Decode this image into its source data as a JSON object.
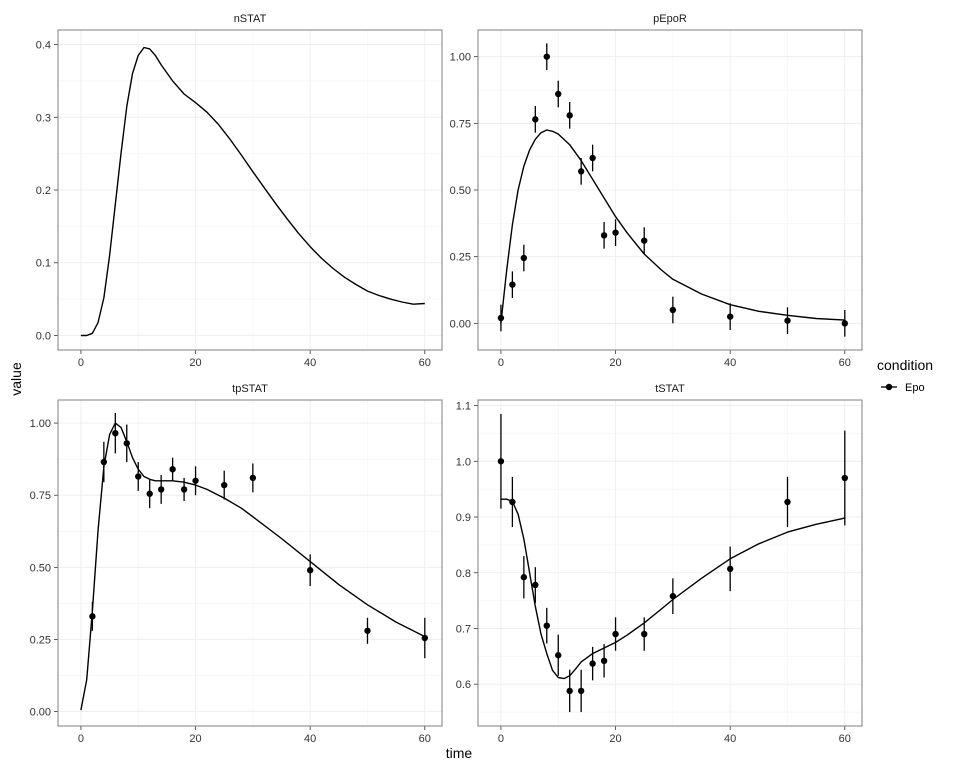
{
  "chart_data": {
    "type": "line",
    "xlabel": "time",
    "ylabel": "value",
    "grid": true,
    "legend": {
      "title": "condition",
      "placement": "right",
      "entries": [
        {
          "name": "Epo",
          "color": "#000000",
          "marker": "point-line"
        }
      ]
    },
    "colors": {
      "line": "#000000",
      "point": "#000000",
      "grid": "#ebebeb",
      "frame": "#7f7f7f"
    },
    "panels": [
      {
        "title": "nSTAT",
        "xlim": [
          -4,
          63
        ],
        "ylim": [
          -0.02,
          0.42
        ],
        "xticks": [
          0,
          20,
          40,
          60
        ],
        "xtick_labels": [
          "0",
          "20",
          "40",
          "60"
        ],
        "yticks": [
          0,
          0.1,
          0.2,
          0.3,
          0.4
        ],
        "ytick_labels": [
          "0.0",
          "0.1",
          "0.2",
          "0.3",
          "0.4"
        ],
        "series": [
          {
            "type": "line",
            "x": [
              0,
              1,
              2,
              3,
              4,
              5,
              6,
              7,
              8,
              9,
              10,
              11,
              12,
              13,
              14,
              16,
              18,
              20,
              22,
              24,
              26,
              28,
              30,
              32,
              34,
              36,
              38,
              40,
              42,
              44,
              46,
              48,
              50,
              52,
              54,
              56,
              58,
              60
            ],
            "y": [
              0.0,
              0.0,
              0.003,
              0.018,
              0.052,
              0.11,
              0.18,
              0.25,
              0.315,
              0.36,
              0.385,
              0.396,
              0.394,
              0.385,
              0.372,
              0.35,
              0.332,
              0.32,
              0.307,
              0.29,
              0.27,
              0.248,
              0.225,
              0.203,
              0.181,
              0.16,
              0.14,
              0.122,
              0.106,
              0.092,
              0.08,
              0.07,
              0.061,
              0.055,
              0.05,
              0.046,
              0.043,
              0.044
            ]
          }
        ]
      },
      {
        "title": "pEpoR",
        "xlim": [
          -4,
          63
        ],
        "ylim": [
          -0.1,
          1.1
        ],
        "xticks": [
          0,
          20,
          40,
          60
        ],
        "xtick_labels": [
          "0",
          "20",
          "40",
          "60"
        ],
        "yticks": [
          0,
          0.25,
          0.5,
          0.75,
          1.0
        ],
        "ytick_labels": [
          "0.00",
          "0.25",
          "0.50",
          "0.75",
          "1.00"
        ],
        "series": [
          {
            "type": "line",
            "x": [
              0,
              1,
              2,
              3,
              4,
              5,
              6,
              7,
              8,
              9,
              10,
              12,
              14,
              16,
              18,
              20,
              22,
              25,
              28,
              30,
              35,
              40,
              45,
              50,
              55,
              60
            ],
            "y": [
              0.0,
              0.2,
              0.37,
              0.5,
              0.59,
              0.65,
              0.69,
              0.715,
              0.725,
              0.72,
              0.71,
              0.67,
              0.61,
              0.54,
              0.47,
              0.4,
              0.34,
              0.26,
              0.2,
              0.165,
              0.11,
              0.07,
              0.045,
              0.03,
              0.018,
              0.012
            ]
          },
          {
            "type": "scatter",
            "x": [
              0,
              2,
              4,
              6,
              8,
              10,
              12,
              14,
              16,
              18,
              20,
              25,
              30,
              40,
              50,
              60
            ],
            "y": [
              0.02,
              0.145,
              0.245,
              0.765,
              1.0,
              0.86,
              0.78,
              0.57,
              0.62,
              0.33,
              0.34,
              0.31,
              0.05,
              0.025,
              0.01,
              0.0
            ],
            "err": [
              0.05,
              0.05,
              0.05,
              0.05,
              0.05,
              0.05,
              0.05,
              0.05,
              0.05,
              0.05,
              0.05,
              0.05,
              0.05,
              0.05,
              0.05,
              0.05
            ]
          }
        ]
      },
      {
        "title": "tpSTAT",
        "xlim": [
          -4,
          63
        ],
        "ylim": [
          -0.05,
          1.08
        ],
        "xticks": [
          0,
          20,
          40,
          60
        ],
        "xtick_labels": [
          "0",
          "20",
          "40",
          "60"
        ],
        "yticks": [
          0,
          0.25,
          0.5,
          0.75,
          1.0
        ],
        "ytick_labels": [
          "0.00",
          "0.25",
          "0.50",
          "0.75",
          "1.00"
        ],
        "series": [
          {
            "type": "line",
            "x": [
              0,
              1,
              2,
              3,
              4,
              5,
              6,
              7,
              8,
              9,
              10,
              11,
              12,
              13,
              14,
              16,
              18,
              20,
              22,
              25,
              28,
              30,
              35,
              40,
              45,
              50,
              55,
              60
            ],
            "y": [
              0.005,
              0.11,
              0.35,
              0.63,
              0.85,
              0.96,
              1.0,
              0.985,
              0.935,
              0.88,
              0.84,
              0.815,
              0.805,
              0.8,
              0.8,
              0.8,
              0.795,
              0.785,
              0.77,
              0.74,
              0.705,
              0.675,
              0.6,
              0.52,
              0.44,
              0.37,
              0.31,
              0.26
            ]
          },
          {
            "type": "scatter",
            "x": [
              2,
              4,
              6,
              8,
              10,
              12,
              14,
              16,
              18,
              20,
              25,
              30,
              40,
              50,
              60
            ],
            "y": [
              0.33,
              0.865,
              0.965,
              0.93,
              0.815,
              0.755,
              0.77,
              0.84,
              0.77,
              0.8,
              0.785,
              0.81,
              0.49,
              0.28,
              0.255
            ],
            "err": [
              0.05,
              0.07,
              0.07,
              0.065,
              0.05,
              0.05,
              0.05,
              0.04,
              0.04,
              0.05,
              0.05,
              0.05,
              0.055,
              0.045,
              0.07
            ]
          }
        ]
      },
      {
        "title": "tSTAT",
        "xlim": [
          -4,
          63
        ],
        "ylim": [
          0.525,
          1.11
        ],
        "xticks": [
          0,
          20,
          40,
          60
        ],
        "xtick_labels": [
          "0",
          "20",
          "40",
          "60"
        ],
        "yticks": [
          0.6,
          0.7,
          0.8,
          0.9,
          1.0,
          1.1
        ],
        "ytick_labels": [
          "0.6",
          "0.7",
          "0.8",
          "0.9",
          "1.0",
          "1.1"
        ],
        "series": [
          {
            "type": "line",
            "x": [
              0,
              1,
              2,
              3,
              4,
              5,
              6,
              7,
              8,
              9,
              10,
              11,
              12,
              13,
              14,
              16,
              18,
              20,
              22,
              25,
              28,
              30,
              35,
              40,
              45,
              50,
              55,
              60
            ],
            "y": [
              0.932,
              0.932,
              0.928,
              0.905,
              0.86,
              0.8,
              0.74,
              0.69,
              0.655,
              0.625,
              0.612,
              0.61,
              0.615,
              0.627,
              0.64,
              0.655,
              0.665,
              0.675,
              0.688,
              0.71,
              0.735,
              0.752,
              0.79,
              0.825,
              0.852,
              0.873,
              0.887,
              0.898
            ]
          },
          {
            "type": "scatter",
            "x": [
              0,
              2,
              4,
              6,
              8,
              10,
              12,
              14,
              16,
              18,
              20,
              25,
              30,
              40,
              50,
              60
            ],
            "y": [
              1.0,
              0.927,
              0.792,
              0.778,
              0.705,
              0.652,
              0.588,
              0.588,
              0.637,
              0.642,
              0.69,
              0.69,
              0.758,
              0.807,
              0.927,
              0.97
            ],
            "err": [
              0.085,
              0.045,
              0.038,
              0.032,
              0.032,
              0.037,
              0.038,
              0.038,
              0.03,
              0.03,
              0.03,
              0.03,
              0.032,
              0.04,
              0.045,
              0.085
            ]
          }
        ]
      }
    ]
  }
}
